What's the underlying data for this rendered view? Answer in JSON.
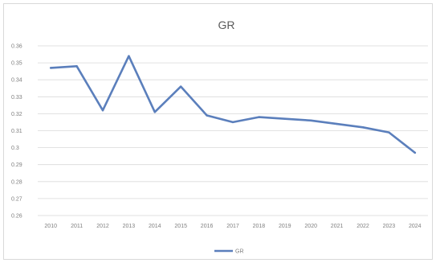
{
  "chart_data": {
    "type": "line",
    "title": "GR",
    "xlabel": "",
    "ylabel": "",
    "categories": [
      "2010",
      "2011",
      "2012",
      "2013",
      "2014",
      "2015",
      "2016",
      "2017",
      "2018",
      "2019",
      "2020",
      "2021",
      "2022",
      "2023",
      "2024"
    ],
    "series": [
      {
        "name": "GR",
        "color": "#5b7fbc",
        "values": [
          0.347,
          0.348,
          0.322,
          0.354,
          0.321,
          0.336,
          0.319,
          0.315,
          0.318,
          0.317,
          0.316,
          0.314,
          0.312,
          0.309,
          0.297
        ]
      }
    ],
    "y_ticks": [
      "0.36",
      "0.35",
      "0.34",
      "0.33",
      "0.32",
      "0.31",
      "0.3",
      "0.29",
      "0.28",
      "0.27",
      "0.26"
    ],
    "ylim": [
      0.26,
      0.36
    ],
    "grid": true,
    "legend": "bottom"
  }
}
